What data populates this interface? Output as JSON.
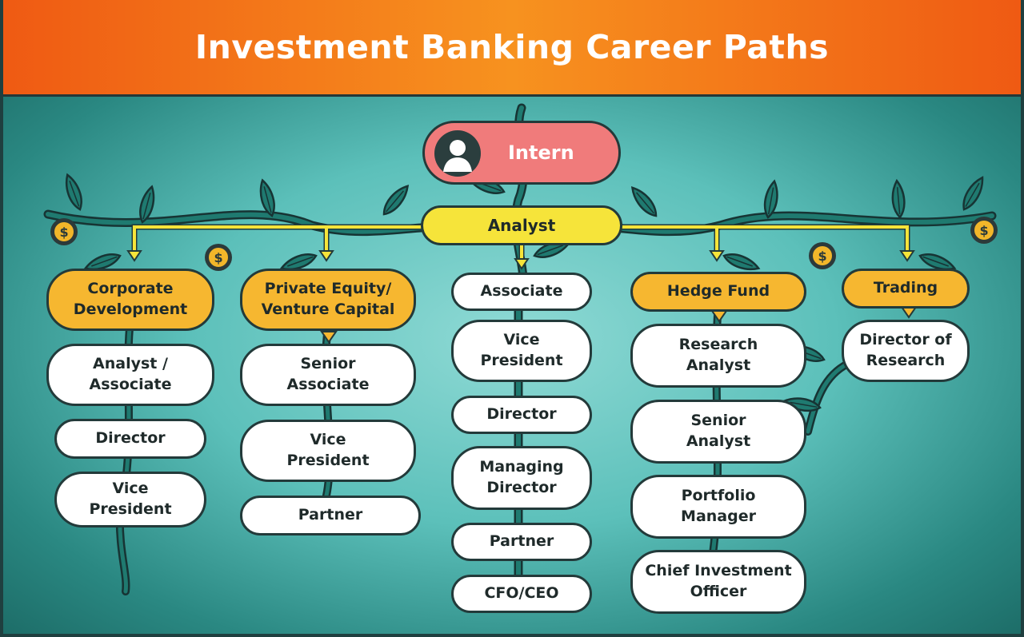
{
  "title": "Investment Banking Career Paths",
  "colors": {
    "header_orange": "#f47a1c",
    "teal_background": "#5cc0ba",
    "vine_green": "#1f7a70",
    "connector_yellow": "#f6e43a",
    "track_head_orange": "#f6b730",
    "intern_pink": "#f07b7b",
    "coin_gold": "#f2b62a"
  },
  "icons": {
    "intern": "person-icon",
    "coin": "dollar-coin-icon"
  },
  "intern": {
    "label": "Intern"
  },
  "analyst": {
    "label": "Analyst"
  },
  "tracks": {
    "corporate": {
      "head": "Corporate\nDevelopment",
      "steps": [
        "Analyst /\nAssociate",
        "Director",
        "Vice\nPresident"
      ]
    },
    "private_equity": {
      "head": "Private Equity/\nVenture Capital",
      "steps": [
        "Senior\nAssociate",
        "Vice\nPresident",
        "Partner"
      ]
    },
    "banking": {
      "steps": [
        "Associate",
        "Vice\nPresident",
        "Director",
        "Managing\nDirector",
        "Partner",
        "CFO/CEO"
      ]
    },
    "hedge_fund": {
      "head": "Hedge Fund",
      "steps": [
        "Research\nAnalyst",
        "Senior\nAnalyst",
        "Portfolio\nManager",
        "Chief Investment\nOfficer"
      ]
    },
    "trading": {
      "head": "Trading",
      "steps": [
        "Director of\nResearch"
      ]
    }
  }
}
